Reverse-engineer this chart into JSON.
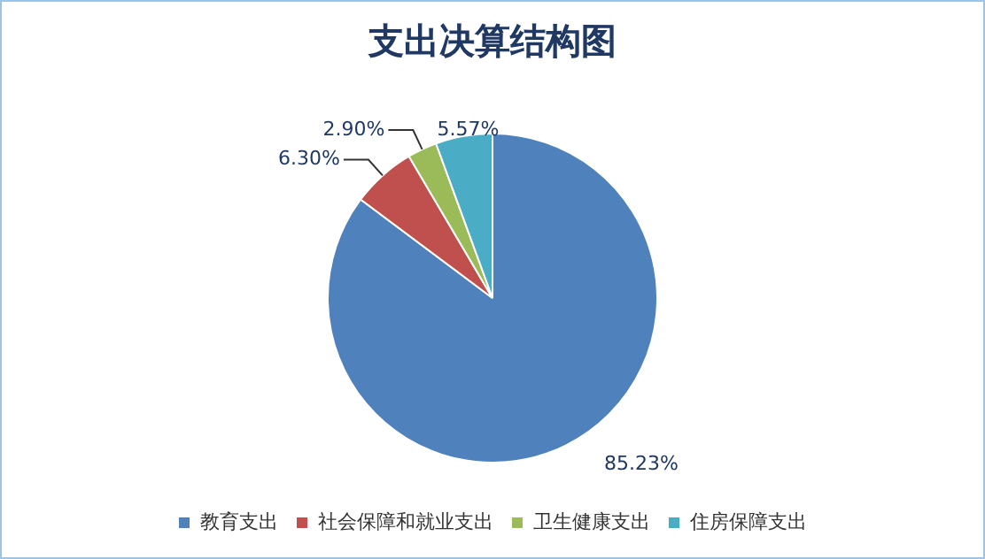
{
  "chart_data": {
    "type": "pie",
    "title": "支出决算结构图",
    "categories": [
      "教育支出",
      "社会保障和就业支出",
      "卫生健康支出",
      "住房保障支出"
    ],
    "values": [
      85.23,
      6.3,
      2.9,
      5.57
    ],
    "colors": [
      "#4f81bd",
      "#c0504d",
      "#9bbb59",
      "#4bacc6"
    ],
    "value_labels": [
      "85.23%",
      "6.30%",
      "2.90%",
      "5.57%"
    ],
    "legend": "bottom"
  }
}
